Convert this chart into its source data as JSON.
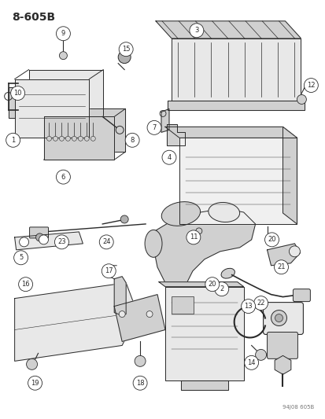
{
  "title": "8-605B",
  "watermark": "94J08 605B",
  "bg_color": "#ffffff",
  "fg_color": "#1a1a1a",
  "figsize": [
    4.14,
    5.33
  ],
  "dpi": 100,
  "line_color": "#2a2a2a",
  "fill_light": "#e8e8e8",
  "fill_mid": "#d0d0d0",
  "fill_dark": "#b0b0b0"
}
